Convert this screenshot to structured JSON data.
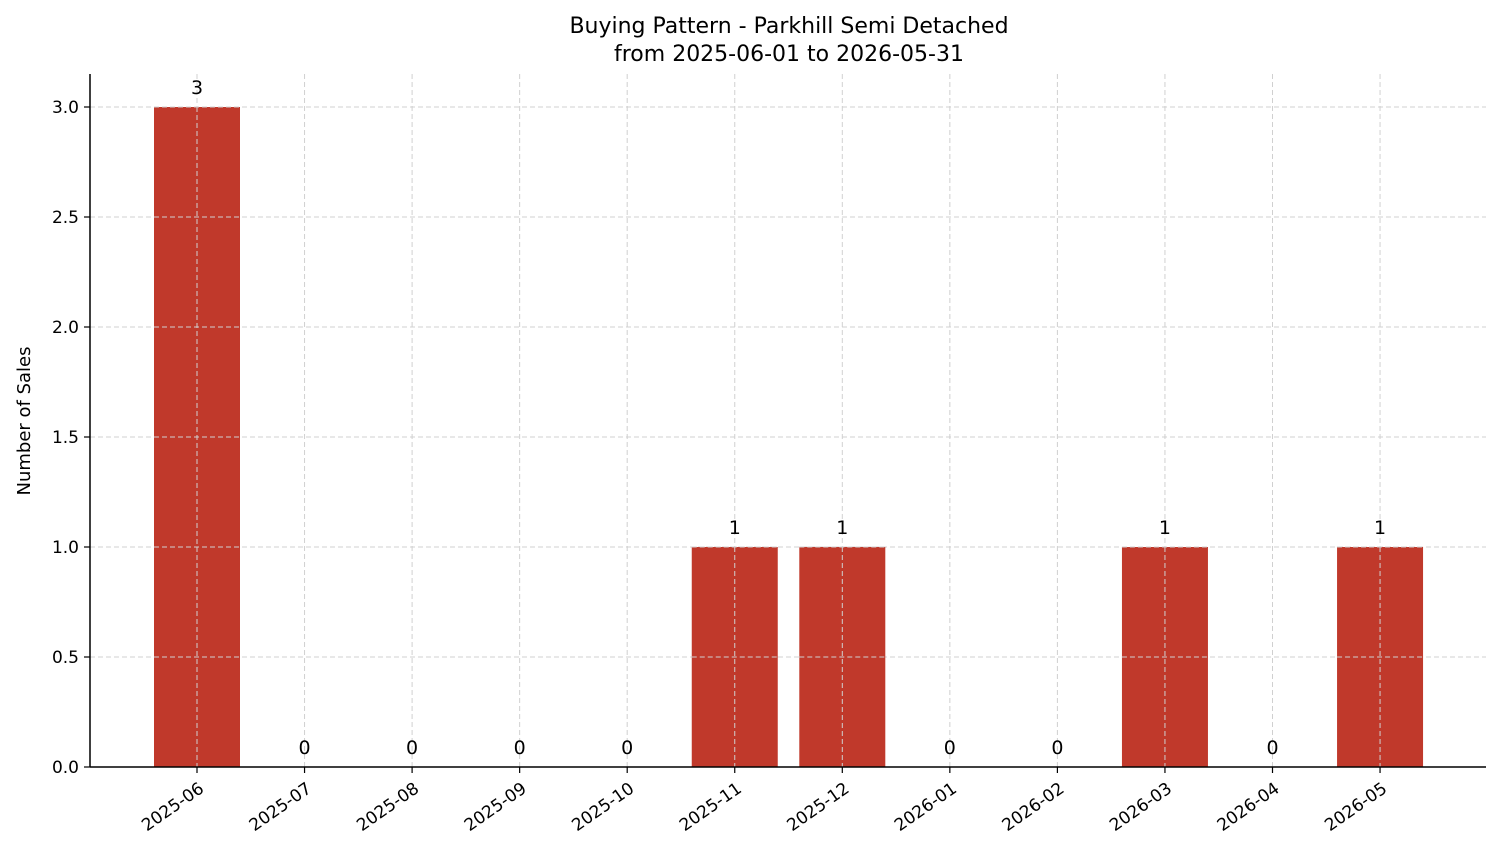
{
  "chart_data": {
    "type": "bar",
    "title": "Buying Pattern - Parkhill Semi Detached",
    "subtitle": "from 2025-06-01 to 2026-05-31",
    "xlabel": "",
    "ylabel": "Number of Sales",
    "categories": [
      "2025-06",
      "2025-07",
      "2025-08",
      "2025-09",
      "2025-10",
      "2025-11",
      "2025-12",
      "2026-01",
      "2026-02",
      "2026-03",
      "2026-04",
      "2026-05"
    ],
    "values": [
      3,
      0,
      0,
      0,
      0,
      1,
      1,
      0,
      0,
      1,
      0,
      1
    ],
    "data_labels": [
      "3",
      "0",
      "0",
      "0",
      "0",
      "1",
      "1",
      "0",
      "0",
      "1",
      "0",
      "1"
    ],
    "ylim": [
      0,
      3.15
    ],
    "yticks": [
      0.0,
      0.5,
      1.0,
      1.5,
      2.0,
      2.5,
      3.0
    ],
    "ytick_labels": [
      "0.0",
      "0.5",
      "1.0",
      "1.5",
      "2.0",
      "2.5",
      "3.0"
    ],
    "grid": true,
    "bar_color": "#c0392b"
  }
}
